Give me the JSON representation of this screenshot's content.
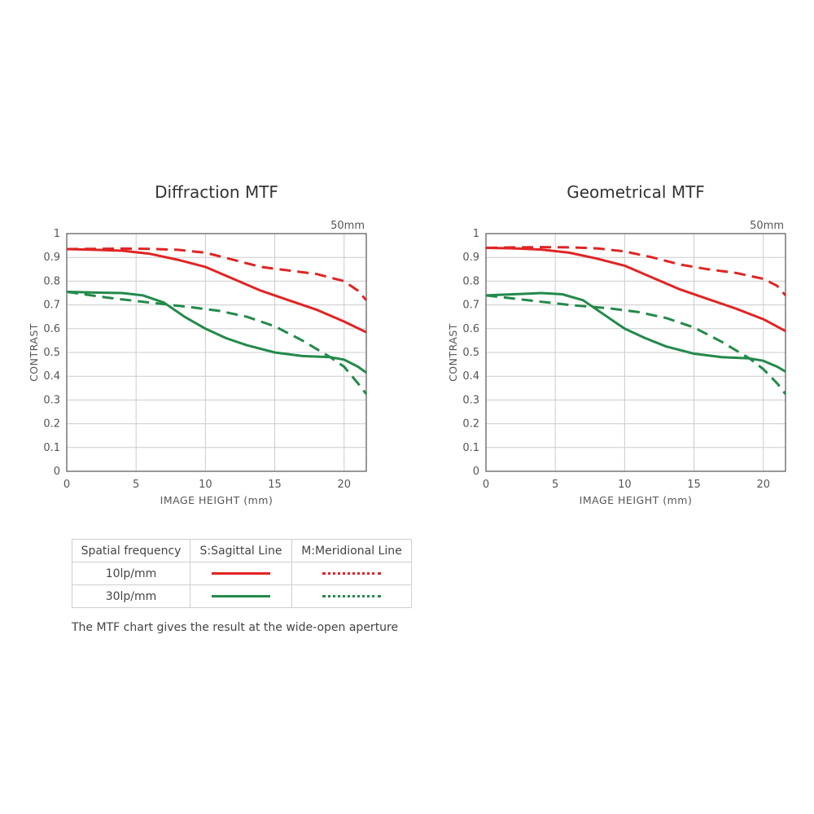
{
  "colors": {
    "red": "#e02424",
    "green": "#238a4a",
    "grid": "#cccccc",
    "axis": "#555555"
  },
  "chart_data": [
    {
      "type": "line",
      "title": "Diffraction MTF",
      "focal_label": "50mm",
      "xlabel": "IMAGE HEIGHT (mm)",
      "ylabel": "CONTRAST",
      "xlim": [
        0,
        21.6
      ],
      "ylim": [
        0,
        1
      ],
      "x_ticks": [
        0,
        5,
        10,
        15,
        20
      ],
      "y_ticks": [
        0,
        0.1,
        0.2,
        0.3,
        0.4,
        0.5,
        0.6,
        0.7,
        0.8,
        0.9,
        1
      ],
      "y_tick_labels": [
        "0",
        "0.1",
        "0.2",
        "0.3",
        "0.4",
        "0.5",
        "0.6",
        "0.7",
        "0.8",
        "0.9",
        "1"
      ],
      "grid": true,
      "series": [
        {
          "name": "10lp/mm Sagittal",
          "color": "red",
          "dash": "solid",
          "points": [
            [
              0,
              0.935
            ],
            [
              2,
              0.932
            ],
            [
              4,
              0.928
            ],
            [
              6,
              0.915
            ],
            [
              8,
              0.89
            ],
            [
              10,
              0.86
            ],
            [
              12,
              0.81
            ],
            [
              14,
              0.76
            ],
            [
              16,
              0.72
            ],
            [
              18,
              0.68
            ],
            [
              20,
              0.63
            ],
            [
              21.6,
              0.585
            ]
          ]
        },
        {
          "name": "10lp/mm Meridional",
          "color": "red",
          "dash": "dashed",
          "points": [
            [
              0,
              0.935
            ],
            [
              2,
              0.936
            ],
            [
              4,
              0.937
            ],
            [
              6,
              0.936
            ],
            [
              8,
              0.932
            ],
            [
              10,
              0.92
            ],
            [
              12,
              0.89
            ],
            [
              14,
              0.86
            ],
            [
              16,
              0.845
            ],
            [
              18,
              0.83
            ],
            [
              20,
              0.8
            ],
            [
              21,
              0.76
            ],
            [
              21.6,
              0.72
            ]
          ]
        },
        {
          "name": "30lp/mm Sagittal",
          "color": "green",
          "dash": "solid",
          "points": [
            [
              0,
              0.755
            ],
            [
              2,
              0.752
            ],
            [
              4,
              0.75
            ],
            [
              5.5,
              0.74
            ],
            [
              7,
              0.71
            ],
            [
              8.5,
              0.65
            ],
            [
              10,
              0.6
            ],
            [
              11.5,
              0.56
            ],
            [
              13,
              0.53
            ],
            [
              15,
              0.5
            ],
            [
              17,
              0.485
            ],
            [
              19,
              0.48
            ],
            [
              20,
              0.47
            ],
            [
              21,
              0.44
            ],
            [
              21.6,
              0.415
            ]
          ]
        },
        {
          "name": "30lp/mm Meridional",
          "color": "green",
          "dash": "dashed",
          "points": [
            [
              0,
              0.755
            ],
            [
              3,
              0.73
            ],
            [
              6,
              0.71
            ],
            [
              9,
              0.69
            ],
            [
              11,
              0.675
            ],
            [
              13,
              0.65
            ],
            [
              15,
              0.61
            ],
            [
              17,
              0.55
            ],
            [
              19,
              0.48
            ],
            [
              20,
              0.44
            ],
            [
              21,
              0.37
            ],
            [
              21.6,
              0.325
            ]
          ]
        }
      ]
    },
    {
      "type": "line",
      "title": "Geometrical MTF",
      "focal_label": "50mm",
      "xlabel": "IMAGE HEIGHT (mm)",
      "ylabel": "CONTRAST",
      "xlim": [
        0,
        21.6
      ],
      "ylim": [
        0,
        1
      ],
      "x_ticks": [
        0,
        5,
        10,
        15,
        20
      ],
      "y_ticks": [
        0,
        0.1,
        0.2,
        0.3,
        0.4,
        0.5,
        0.6,
        0.7,
        0.8,
        0.9,
        1
      ],
      "y_tick_labels": [
        "0",
        "0.1",
        "0.2",
        "0.3",
        "0.4",
        "0.5",
        "0.6",
        "0.7",
        "0.8",
        "0.9",
        "1"
      ],
      "grid": true,
      "series": [
        {
          "name": "10lp/mm Sagittal",
          "color": "red",
          "dash": "solid",
          "points": [
            [
              0,
              0.94
            ],
            [
              2,
              0.938
            ],
            [
              4,
              0.933
            ],
            [
              6,
              0.92
            ],
            [
              8,
              0.895
            ],
            [
              10,
              0.865
            ],
            [
              12,
              0.815
            ],
            [
              14,
              0.765
            ],
            [
              16,
              0.725
            ],
            [
              18,
              0.685
            ],
            [
              20,
              0.64
            ],
            [
              21.6,
              0.59
            ]
          ]
        },
        {
          "name": "10lp/mm Meridional",
          "color": "red",
          "dash": "dashed",
          "points": [
            [
              0,
              0.94
            ],
            [
              2,
              0.942
            ],
            [
              4,
              0.943
            ],
            [
              6,
              0.942
            ],
            [
              8,
              0.938
            ],
            [
              10,
              0.925
            ],
            [
              12,
              0.9
            ],
            [
              14,
              0.87
            ],
            [
              16,
              0.85
            ],
            [
              18,
              0.835
            ],
            [
              20,
              0.81
            ],
            [
              21,
              0.78
            ],
            [
              21.6,
              0.74
            ]
          ]
        },
        {
          "name": "30lp/mm Sagittal",
          "color": "green",
          "dash": "solid",
          "points": [
            [
              0,
              0.74
            ],
            [
              2,
              0.745
            ],
            [
              4,
              0.75
            ],
            [
              5.5,
              0.745
            ],
            [
              7,
              0.72
            ],
            [
              8.5,
              0.66
            ],
            [
              10,
              0.6
            ],
            [
              11.5,
              0.56
            ],
            [
              13,
              0.525
            ],
            [
              15,
              0.495
            ],
            [
              17,
              0.48
            ],
            [
              19,
              0.475
            ],
            [
              20,
              0.465
            ],
            [
              21,
              0.44
            ],
            [
              21.6,
              0.42
            ]
          ]
        },
        {
          "name": "30lp/mm Meridional",
          "color": "green",
          "dash": "dashed",
          "points": [
            [
              0,
              0.74
            ],
            [
              3,
              0.72
            ],
            [
              6,
              0.7
            ],
            [
              9,
              0.685
            ],
            [
              11,
              0.67
            ],
            [
              13,
              0.645
            ],
            [
              15,
              0.605
            ],
            [
              17,
              0.545
            ],
            [
              19,
              0.475
            ],
            [
              20,
              0.43
            ],
            [
              21,
              0.37
            ],
            [
              21.6,
              0.325
            ]
          ]
        }
      ]
    }
  ],
  "legend": {
    "header": {
      "freq": "Spatial frequency",
      "sagittal": "S:Sagittal Line",
      "meridional": "M:Meridional Line"
    },
    "rows": [
      {
        "label": "10lp/mm",
        "color": "red"
      },
      {
        "label": "30lp/mm",
        "color": "green"
      }
    ]
  },
  "note": "The MTF chart gives the result at the wide-open aperture"
}
